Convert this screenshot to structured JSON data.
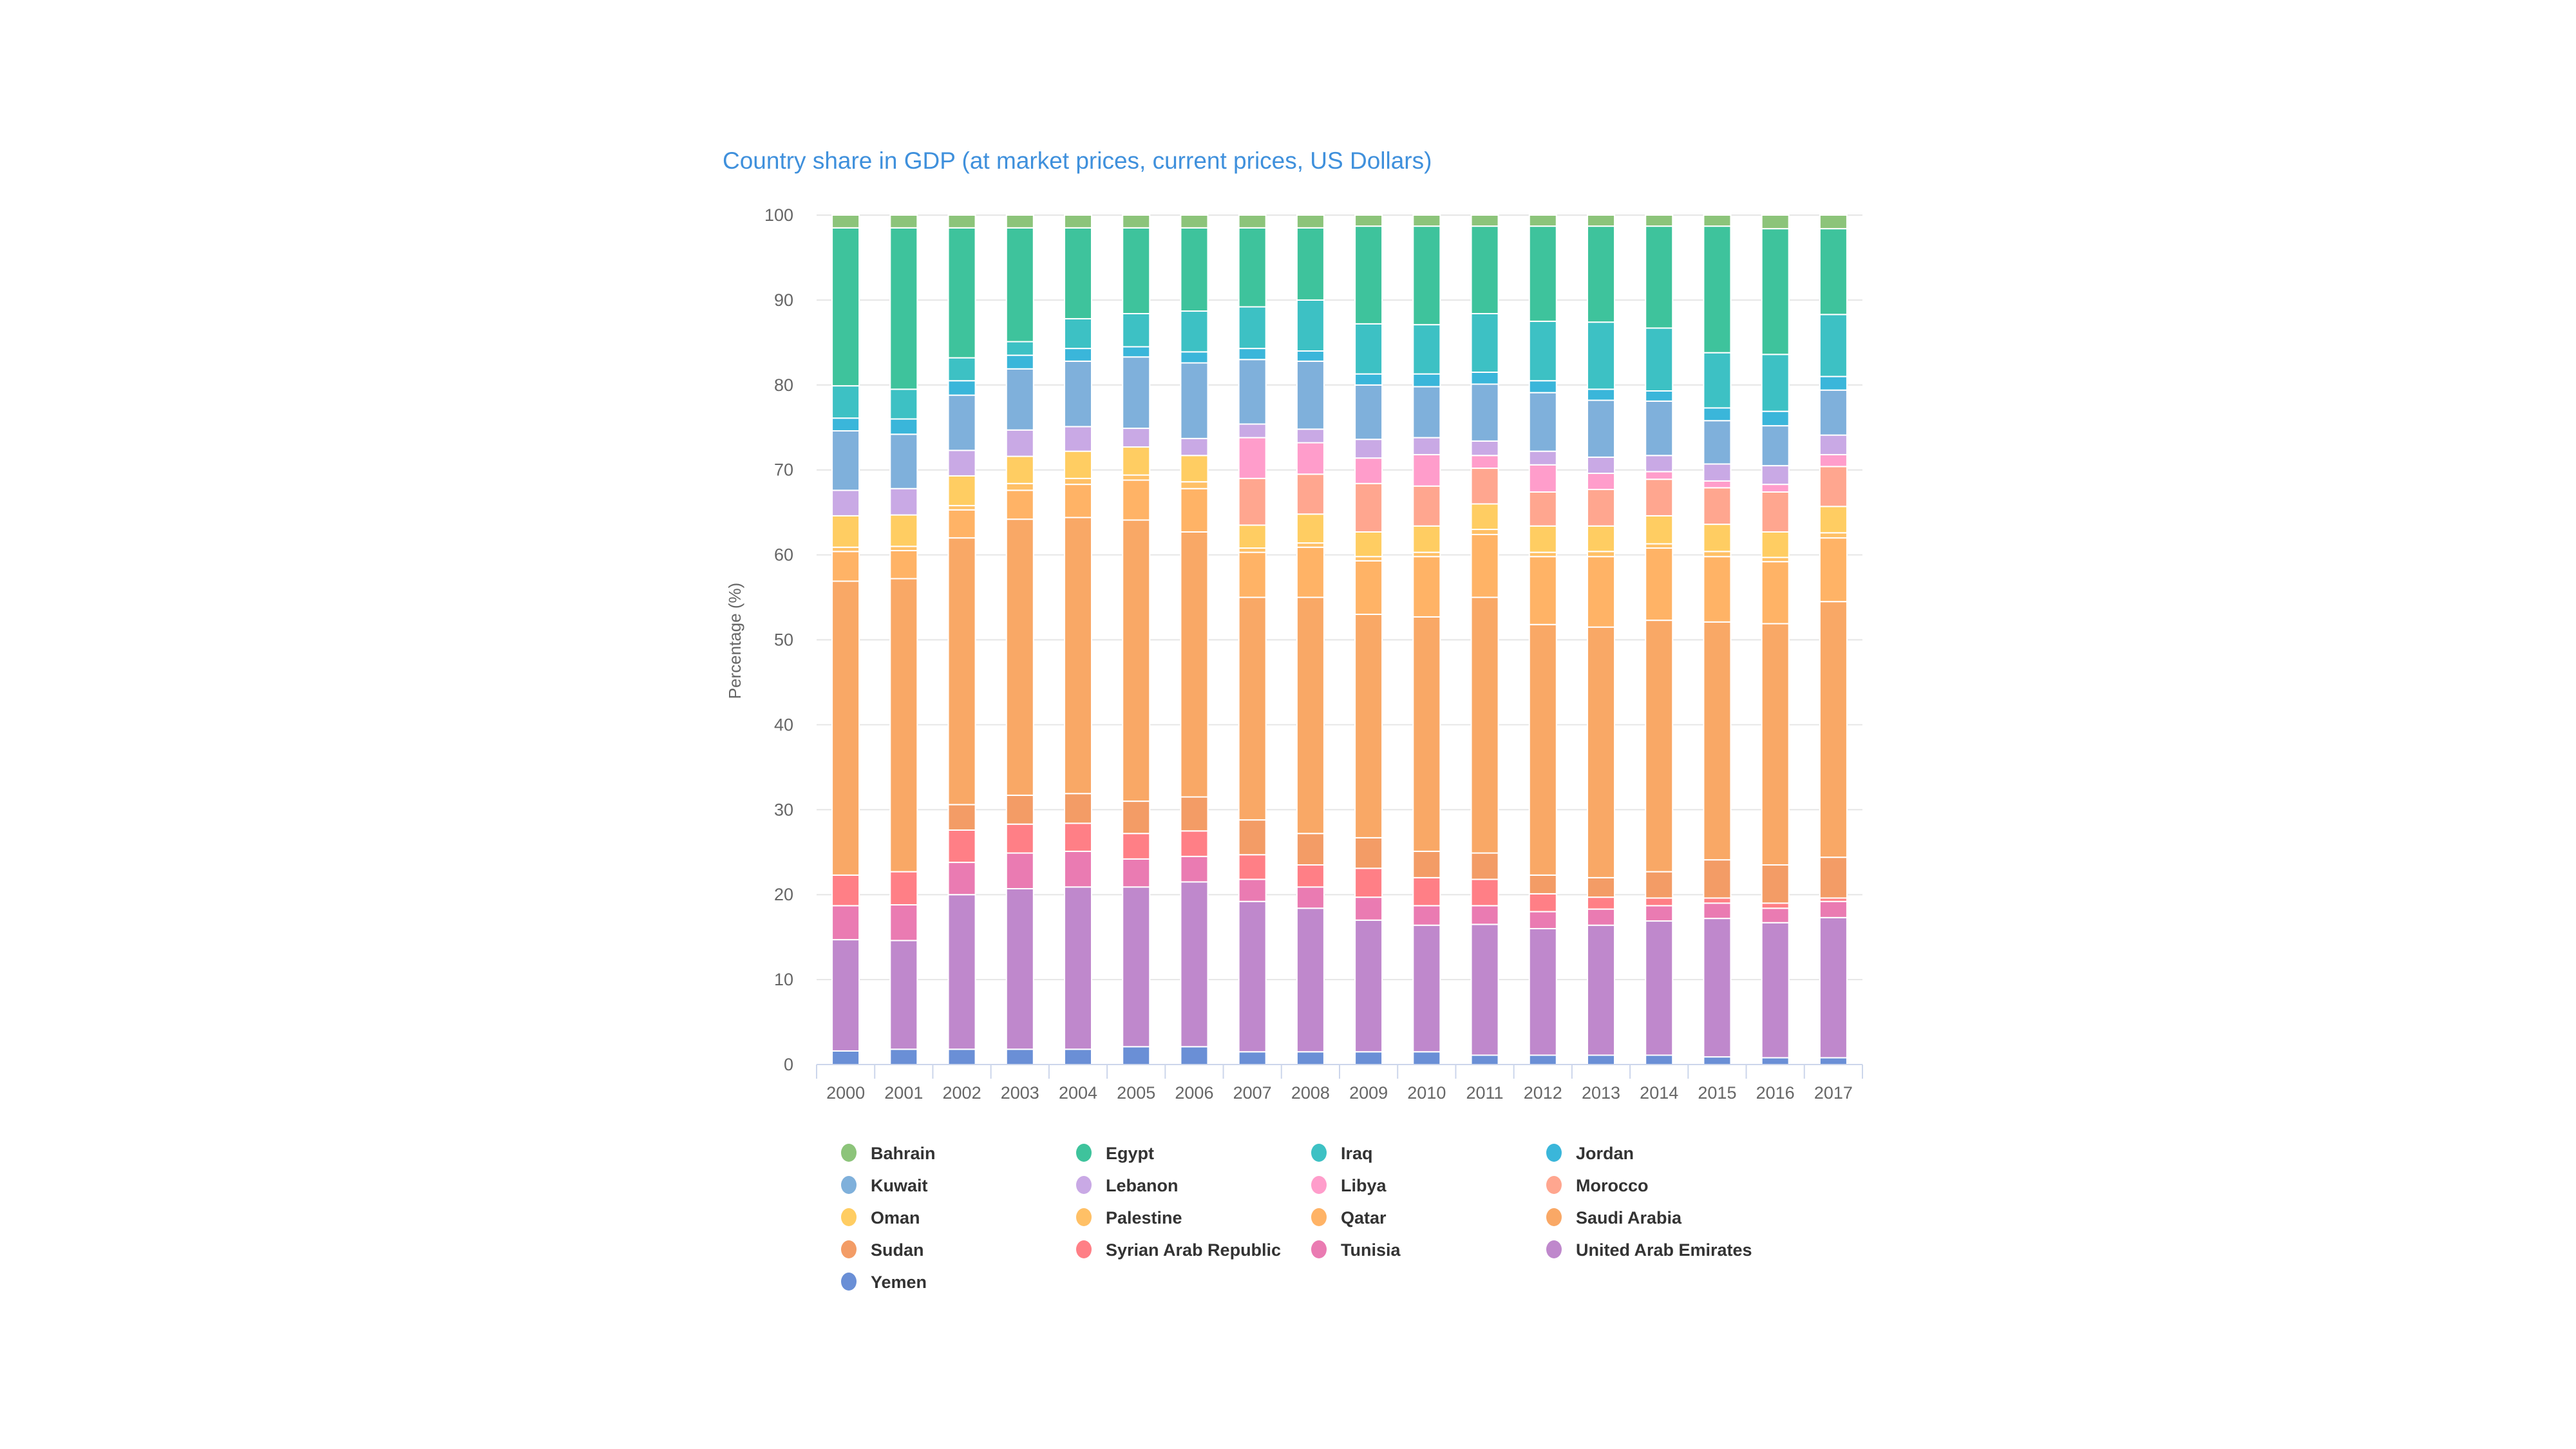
{
  "chart_data": {
    "type": "bar",
    "stacked": "percent",
    "title": "Country share in GDP (at market prices, current prices, US Dollars)",
    "xlabel": "",
    "ylabel": "Percentage (%)",
    "ylim": [
      0,
      100
    ],
    "yticks": [
      "0",
      "10",
      "20",
      "30",
      "40",
      "50",
      "60",
      "70",
      "80",
      "90",
      "100"
    ],
    "grid": true,
    "legend_position": "bottom",
    "categories": [
      "2000",
      "2001",
      "2002",
      "2003",
      "2004",
      "2005",
      "2006",
      "2007",
      "2008",
      "2009",
      "2010",
      "2011",
      "2012",
      "2013",
      "2014",
      "2015",
      "2016",
      "2017"
    ],
    "series": [
      {
        "name": "Bahrain",
        "color": "#8cc47a",
        "values": [
          1.5,
          1.5,
          1.5,
          1.5,
          1.5,
          1.5,
          1.5,
          1.5,
          1.5,
          1.3,
          1.3,
          1.3,
          1.3,
          1.3,
          1.3,
          1.3,
          1.6,
          1.6
        ]
      },
      {
        "name": "Egypt",
        "color": "#3ec39c",
        "values": [
          18.6,
          19.0,
          15.3,
          13.4,
          10.7,
          10.1,
          9.8,
          9.3,
          8.5,
          11.5,
          11.6,
          10.3,
          11.2,
          11.3,
          12.0,
          14.9,
          14.8,
          10.1
        ]
      },
      {
        "name": "Iraq",
        "color": "#3dc1c4",
        "values": [
          3.8,
          3.5,
          2.7,
          1.6,
          3.5,
          3.9,
          4.8,
          4.9,
          6.0,
          5.9,
          5.8,
          6.9,
          7.0,
          7.9,
          7.4,
          6.5,
          6.7,
          7.3
        ]
      },
      {
        "name": "Jordan",
        "color": "#3ab6da",
        "values": [
          1.5,
          1.8,
          1.7,
          1.6,
          1.5,
          1.2,
          1.3,
          1.3,
          1.2,
          1.3,
          1.5,
          1.4,
          1.4,
          1.3,
          1.2,
          1.5,
          1.7,
          1.6
        ]
      },
      {
        "name": "Kuwait",
        "color": "#7fb0db",
        "values": [
          7.0,
          6.4,
          6.5,
          7.2,
          7.7,
          8.4,
          8.9,
          7.6,
          8.0,
          6.4,
          6.0,
          6.7,
          6.9,
          6.7,
          6.4,
          5.1,
          4.7,
          5.3
        ]
      },
      {
        "name": "Lebanon",
        "color": "#c9a9e5",
        "values": [
          3.0,
          3.1,
          3.0,
          3.1,
          2.9,
          2.2,
          2.0,
          1.6,
          1.6,
          2.2,
          2.0,
          1.7,
          1.6,
          1.9,
          1.9,
          2.0,
          2.2,
          2.3
        ]
      },
      {
        "name": "Libya",
        "color": "#ff9dcb",
        "values": [
          0,
          0,
          0,
          0,
          0,
          0,
          0,
          4.8,
          3.7,
          3.0,
          3.7,
          1.5,
          3.2,
          1.9,
          0.9,
          0.8,
          0.9,
          1.4
        ]
      },
      {
        "name": "Morocco",
        "color": "#ffa68f",
        "values": [
          0,
          0,
          0,
          0,
          0,
          0,
          0,
          5.5,
          4.7,
          5.7,
          4.7,
          4.2,
          4.0,
          4.3,
          4.3,
          4.3,
          4.7,
          4.7
        ]
      },
      {
        "name": "Oman",
        "color": "#ffcd62",
        "values": [
          3.7,
          3.7,
          3.5,
          3.2,
          3.2,
          3.3,
          3.1,
          2.7,
          3.4,
          2.9,
          3.1,
          3.0,
          3.1,
          3.0,
          3.3,
          3.2,
          3.0,
          3.1
        ]
      },
      {
        "name": "Palestine",
        "color": "#ffc066",
        "values": [
          0.5,
          0.5,
          0.5,
          0.8,
          0.7,
          0.6,
          0.8,
          0.5,
          0.5,
          0.5,
          0.5,
          0.6,
          0.5,
          0.6,
          0.5,
          0.6,
          0.5,
          0.6
        ]
      },
      {
        "name": "Qatar",
        "color": "#ffb366",
        "values": [
          3.5,
          3.3,
          3.3,
          3.4,
          3.9,
          4.7,
          5.1,
          5.3,
          5.9,
          6.3,
          7.1,
          7.4,
          8.0,
          8.3,
          8.5,
          7.7,
          7.3,
          7.5
        ]
      },
      {
        "name": "Saudi Arabia",
        "color": "#f9a866",
        "values": [
          34.6,
          34.5,
          31.4,
          32.5,
          32.5,
          33.1,
          31.2,
          26.2,
          27.8,
          26.3,
          27.6,
          30.1,
          29.5,
          29.5,
          29.6,
          28.0,
          28.4,
          30.1
        ]
      },
      {
        "name": "Sudan",
        "color": "#f39c66",
        "values": [
          0,
          0,
          3.0,
          3.4,
          3.5,
          3.8,
          4.0,
          4.1,
          3.7,
          3.6,
          3.1,
          3.1,
          2.2,
          2.3,
          3.1,
          4.5,
          4.5,
          4.8
        ]
      },
      {
        "name": "Syrian Arab Republic",
        "color": "#ff7f86",
        "values": [
          3.6,
          3.9,
          3.8,
          3.4,
          3.3,
          3.0,
          3.0,
          2.9,
          2.6,
          3.4,
          3.3,
          3.1,
          2.1,
          1.4,
          0.9,
          0.6,
          0.6,
          0.4
        ]
      },
      {
        "name": "Tunisia",
        "color": "#ea7bb2",
        "values": [
          4.0,
          4.2,
          3.8,
          4.2,
          4.2,
          3.3,
          3.0,
          2.6,
          2.5,
          2.7,
          2.3,
          2.2,
          2.0,
          1.9,
          1.8,
          1.8,
          1.7,
          1.9
        ]
      },
      {
        "name": "United Arab Emirates",
        "color": "#bf88cc",
        "values": [
          13.1,
          12.8,
          18.2,
          18.9,
          19.1,
          18.8,
          19.4,
          17.7,
          16.9,
          15.5,
          14.9,
          15.4,
          14.9,
          15.3,
          15.8,
          16.3,
          15.9,
          16.5
        ]
      },
      {
        "name": "Yemen",
        "color": "#6a8fd6",
        "values": [
          1.6,
          1.8,
          1.8,
          1.8,
          1.8,
          2.1,
          2.1,
          1.5,
          1.5,
          1.5,
          1.5,
          1.1,
          1.1,
          1.1,
          1.1,
          0.9,
          0.8,
          0.8
        ]
      }
    ]
  }
}
